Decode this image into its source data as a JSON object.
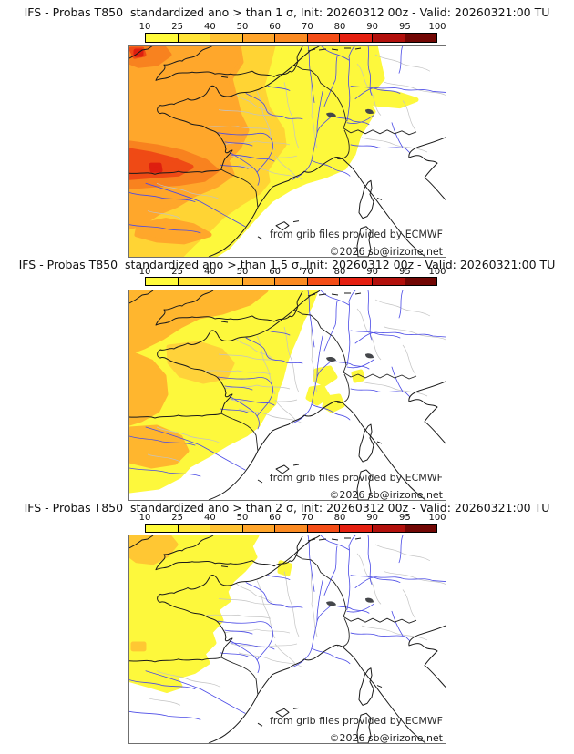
{
  "colorbar": {
    "tick_labels": [
      "10",
      "25",
      "40",
      "50",
      "60",
      "70",
      "80",
      "90",
      "95",
      "100"
    ],
    "segment_colors": [
      "#FFFB3B",
      "#FFE437",
      "#FFC233",
      "#FFA52B",
      "#FB8A22",
      "#F44D17",
      "#E51F10",
      "#B2100C",
      "#720704"
    ]
  },
  "panels": [
    {
      "title": "IFS - Probas T850  standardized ano > than 1 σ, Init: 20260312 00z - Valid: 20260321:00 TU",
      "threshold": "1 σ",
      "credit": "from grib files provided by ECMWF",
      "copyright": "©2026 sb@irizone.net"
    },
    {
      "title": "IFS - Probas T850  standardized ano > than 1.5 σ, Init: 20260312 00z - Valid: 20260321:00 TU",
      "threshold": "1.5 σ",
      "credit": "from grib files provided by ECMWF",
      "copyright": "©2026 sb@irizone.net"
    },
    {
      "title": "IFS - Probas T850  standardized ano > than 2 σ, Init: 20260312 00z - Valid: 20260321:00 TU",
      "threshold": "2 σ",
      "credit": "from grib files provided by ECMWF",
      "copyright": "©2026 sb@irizone.net"
    }
  ],
  "map_colors": {
    "sea": "#FFFFFF",
    "coast": "#1a1a1a",
    "border": "#222222",
    "river": "#4A4AE6",
    "admin": "#C3C3C3",
    "lake": "#45474b",
    "yellow": "#FDF83C",
    "yorange": "#FFD434",
    "orange": "#FFA72B",
    "orange2": "#FFB62E",
    "olight": "#FFD23A",
    "dorange": "#F8821F",
    "rorange": "#EF4A15",
    "red": "#DE1F0F",
    "ocorner": "#FFC733"
  }
}
